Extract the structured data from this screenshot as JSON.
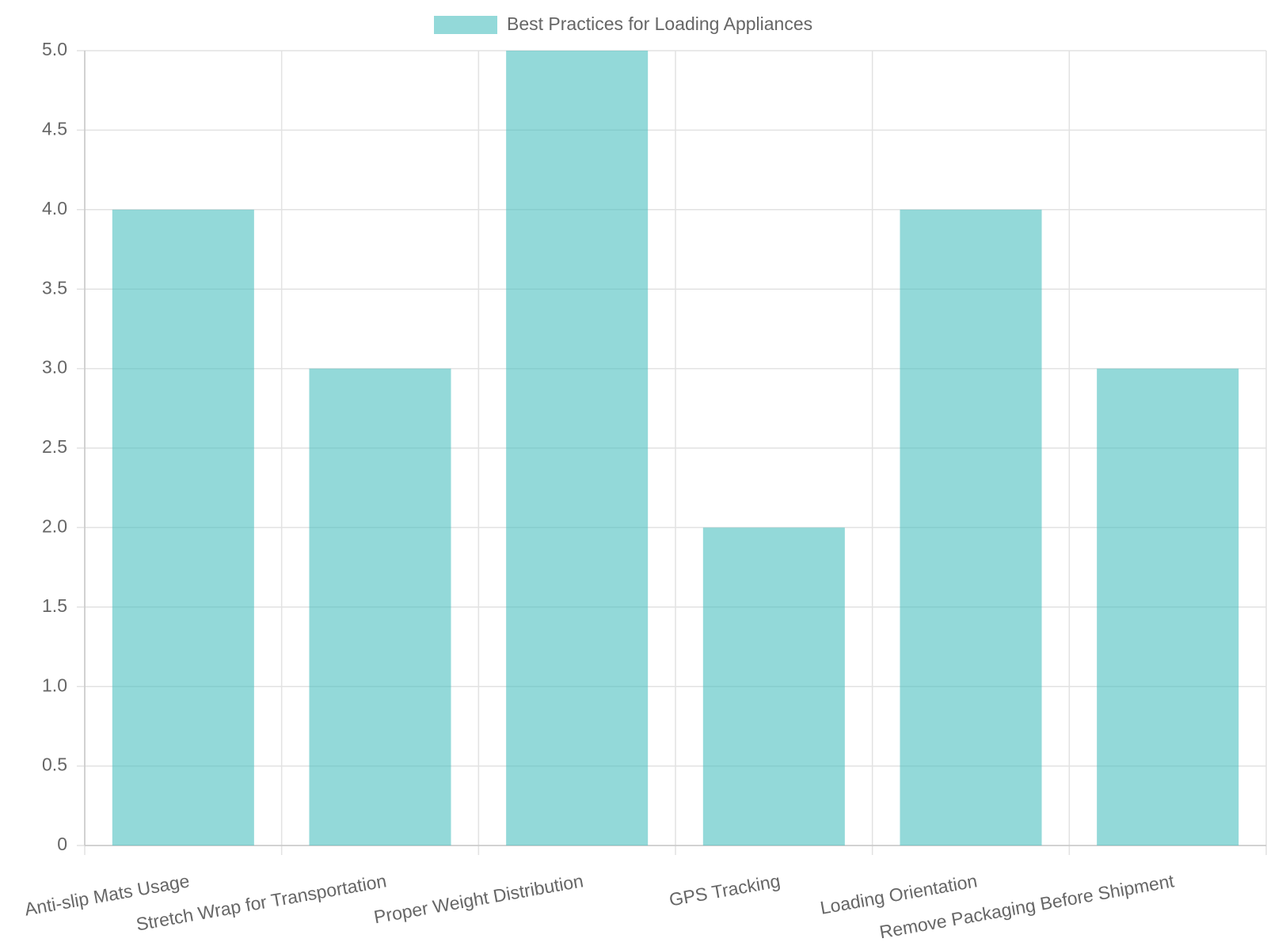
{
  "chart_data": {
    "type": "bar",
    "categories": [
      "Anti-slip Mats Usage",
      "Stretch Wrap for Transportation",
      "Proper Weight Distribution",
      "GPS Tracking",
      "Loading Orientation",
      "Remove Packaging Before Shipment"
    ],
    "series": [
      {
        "name": "Best Practices for Loading Appliances",
        "color": "rgba(75,192,192,0.6)",
        "values": [
          4,
          3,
          5,
          2,
          4,
          3
        ]
      }
    ],
    "ylim": [
      0,
      5
    ],
    "yticks": [
      0,
      0.5,
      {
        "value": 1,
        "label": "1.0"
      },
      1.5,
      {
        "value": 2,
        "label": "2.0"
      },
      2.5,
      {
        "value": 3,
        "label": "3.0"
      },
      3.5,
      {
        "value": 4,
        "label": "4.0"
      },
      4.5,
      {
        "value": 5,
        "label": "5.0"
      }
    ],
    "grid": true,
    "legend": "top"
  }
}
